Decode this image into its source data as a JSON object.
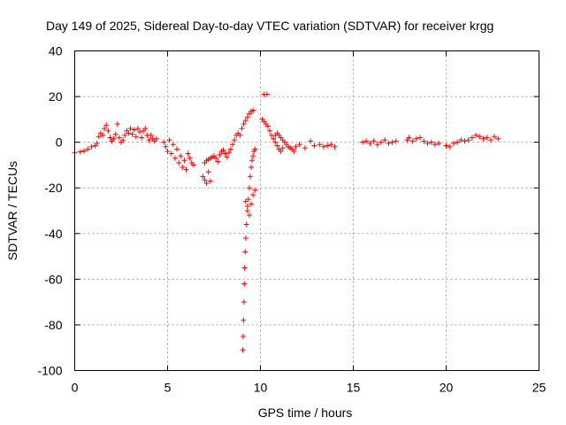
{
  "chart_data": {
    "type": "scatter",
    "title": "Day 149 of 2025, Sidereal Day-to-day VTEC variation (SDTVAR) for receiver krgg",
    "xlabel": "GPS time / hours",
    "ylabel": "SDTVAR / TECUs",
    "xlim": [
      0,
      25
    ],
    "ylim": [
      -100,
      40
    ],
    "xticks": [
      0,
      5,
      10,
      15,
      20,
      25
    ],
    "yticks": [
      -100,
      -80,
      -60,
      -40,
      -20,
      0,
      20,
      40
    ],
    "xtick_labels": [
      "0",
      "5",
      "10",
      "15",
      "20",
      "25"
    ],
    "ytick_labels": [
      "-100",
      "-80",
      "-60",
      "-40",
      "-20",
      "0",
      "20",
      "40"
    ],
    "grid": true,
    "marker": "plus",
    "color": "#ff0000",
    "series": [
      {
        "name": "SDTVAR",
        "points": [
          [
            0.0,
            -4.5
          ],
          [
            0.3,
            -4.2
          ],
          [
            0.5,
            -3.8
          ],
          [
            0.7,
            -3.0
          ],
          [
            0.9,
            -2.0
          ],
          [
            1.1,
            -1.5
          ],
          [
            1.2,
            -0.5
          ],
          [
            1.3,
            2.5
          ],
          [
            1.4,
            4.0
          ],
          [
            1.5,
            3.0
          ],
          [
            1.6,
            6.0
          ],
          [
            1.7,
            7.5
          ],
          [
            1.8,
            5.0
          ],
          [
            1.9,
            2.0
          ],
          [
            2.0,
            0.5
          ],
          [
            2.1,
            1.5
          ],
          [
            2.2,
            3.5
          ],
          [
            2.3,
            8.0
          ],
          [
            2.4,
            2.0
          ],
          [
            2.5,
            0.0
          ],
          [
            2.6,
            1.0
          ],
          [
            2.7,
            3.0
          ],
          [
            2.8,
            5.0
          ],
          [
            2.9,
            4.0
          ],
          [
            3.0,
            6.0
          ],
          [
            3.1,
            3.5
          ],
          [
            3.2,
            5.5
          ],
          [
            3.3,
            2.5
          ],
          [
            3.4,
            6.0
          ],
          [
            3.5,
            4.5
          ],
          [
            3.6,
            2.0
          ],
          [
            3.7,
            5.0
          ],
          [
            3.8,
            6.0
          ],
          [
            3.9,
            3.0
          ],
          [
            4.0,
            1.0
          ],
          [
            4.1,
            3.0
          ],
          [
            4.2,
            1.5
          ],
          [
            4.3,
            0.5
          ],
          [
            4.4,
            1.5
          ],
          [
            4.8,
            0.0
          ],
          [
            4.9,
            -2.0
          ],
          [
            5.0,
            -4.0
          ],
          [
            5.1,
            1.0
          ],
          [
            5.2,
            -5.0
          ],
          [
            5.3,
            -1.0
          ],
          [
            5.4,
            -7.0
          ],
          [
            5.5,
            -3.0
          ],
          [
            5.6,
            -9.0
          ],
          [
            5.7,
            -6.0
          ],
          [
            5.8,
            -11.0
          ],
          [
            5.9,
            -8.0
          ],
          [
            6.0,
            -12.0
          ],
          [
            6.1,
            -5.0
          ],
          [
            6.2,
            -7.0
          ],
          [
            6.3,
            -9.0
          ],
          [
            6.4,
            -10.0
          ],
          [
            6.9,
            -15.0
          ],
          [
            7.0,
            -16.5
          ],
          [
            7.1,
            -18.0
          ],
          [
            7.2,
            -13.0
          ],
          [
            7.3,
            -17.0
          ],
          [
            7.0,
            -9.0
          ],
          [
            7.1,
            -8.0
          ],
          [
            7.2,
            -7.5
          ],
          [
            7.3,
            -7.0
          ],
          [
            7.4,
            -6.5
          ],
          [
            7.5,
            -6.0
          ],
          [
            7.6,
            -7.0
          ],
          [
            7.7,
            -8.5
          ],
          [
            7.8,
            -5.5
          ],
          [
            7.9,
            -4.0
          ],
          [
            8.0,
            -3.5
          ],
          [
            8.1,
            -5.0
          ],
          [
            8.2,
            -6.5
          ],
          [
            8.3,
            -4.5
          ],
          [
            8.4,
            -3.0
          ],
          [
            8.5,
            -1.0
          ],
          [
            8.6,
            1.0
          ],
          [
            8.7,
            3.0
          ],
          [
            8.8,
            4.0
          ],
          [
            8.9,
            3.0
          ],
          [
            9.0,
            6.0
          ],
          [
            9.1,
            8.0
          ],
          [
            9.2,
            9.5
          ],
          [
            9.3,
            11.0
          ],
          [
            9.4,
            12.5
          ],
          [
            9.5,
            13.5
          ],
          [
            9.6,
            14.0
          ],
          [
            9.05,
            -91.0
          ],
          [
            9.07,
            -85.0
          ],
          [
            9.09,
            -78.0
          ],
          [
            9.11,
            -70.0
          ],
          [
            9.13,
            -62.0
          ],
          [
            9.15,
            -55.0
          ],
          [
            9.18,
            -48.0
          ],
          [
            9.21,
            -42.0
          ],
          [
            9.25,
            -36.0
          ],
          [
            9.3,
            -30.0
          ],
          [
            9.35,
            -25.0
          ],
          [
            9.4,
            -20.0
          ],
          [
            9.45,
            -15.0
          ],
          [
            9.5,
            -11.0
          ],
          [
            9.55,
            -8.0
          ],
          [
            9.6,
            -6.0
          ],
          [
            9.65,
            -4.0
          ],
          [
            9.7,
            -3.0
          ],
          [
            9.2,
            -26.0
          ],
          [
            9.3,
            -28.0
          ],
          [
            9.4,
            -32.0
          ],
          [
            9.5,
            -27.0
          ],
          [
            9.6,
            -23.0
          ],
          [
            9.7,
            -21.0
          ],
          [
            10.2,
            21.0
          ],
          [
            10.35,
            21.0
          ],
          [
            10.1,
            10.0
          ],
          [
            10.2,
            9.0
          ],
          [
            10.3,
            8.0
          ],
          [
            10.4,
            7.0
          ],
          [
            10.5,
            5.0
          ],
          [
            10.6,
            3.0
          ],
          [
            10.7,
            1.5
          ],
          [
            10.8,
            0.0
          ],
          [
            10.9,
            -1.5
          ],
          [
            11.0,
            -3.0
          ],
          [
            11.1,
            -4.0
          ],
          [
            11.2,
            -2.5
          ],
          [
            10.8,
            3.0
          ],
          [
            10.9,
            4.0
          ],
          [
            11.0,
            3.0
          ],
          [
            11.1,
            2.0
          ],
          [
            11.2,
            1.0
          ],
          [
            11.3,
            0.0
          ],
          [
            11.4,
            -1.0
          ],
          [
            11.5,
            -2.0
          ],
          [
            11.6,
            -2.5
          ],
          [
            11.7,
            -3.0
          ],
          [
            11.8,
            -4.0
          ],
          [
            11.9,
            -2.0
          ],
          [
            12.1,
            -1.0
          ],
          [
            12.4,
            -2.5
          ],
          [
            12.7,
            0.5
          ],
          [
            12.9,
            -1.5
          ],
          [
            13.2,
            -1.0
          ],
          [
            13.4,
            -2.0
          ],
          [
            13.6,
            -1.5
          ],
          [
            13.8,
            -1.0
          ],
          [
            14.0,
            -2.0
          ],
          [
            15.5,
            0.0
          ],
          [
            15.7,
            0.5
          ],
          [
            15.9,
            -0.5
          ],
          [
            16.1,
            0.5
          ],
          [
            16.3,
            -1.0
          ],
          [
            16.5,
            0.0
          ],
          [
            16.7,
            1.0
          ],
          [
            16.9,
            -0.5
          ],
          [
            17.1,
            0.0
          ],
          [
            17.3,
            0.5
          ],
          [
            17.9,
            1.0
          ],
          [
            18.0,
            2.0
          ],
          [
            18.2,
            0.5
          ],
          [
            18.4,
            1.5
          ],
          [
            18.6,
            2.0
          ],
          [
            18.8,
            0.5
          ],
          [
            19.0,
            -0.5
          ],
          [
            19.2,
            0.0
          ],
          [
            19.4,
            -1.0
          ],
          [
            19.6,
            -0.5
          ],
          [
            20.0,
            -1.5
          ],
          [
            20.2,
            -2.0
          ],
          [
            20.4,
            -0.5
          ],
          [
            20.6,
            0.0
          ],
          [
            20.8,
            1.0
          ],
          [
            21.0,
            0.5
          ],
          [
            21.2,
            1.0
          ],
          [
            21.4,
            2.0
          ],
          [
            21.6,
            3.0
          ],
          [
            21.8,
            2.5
          ],
          [
            22.0,
            1.5
          ],
          [
            22.2,
            2.0
          ],
          [
            22.4,
            1.0
          ],
          [
            22.6,
            2.5
          ],
          [
            22.8,
            1.5
          ]
        ]
      }
    ]
  }
}
